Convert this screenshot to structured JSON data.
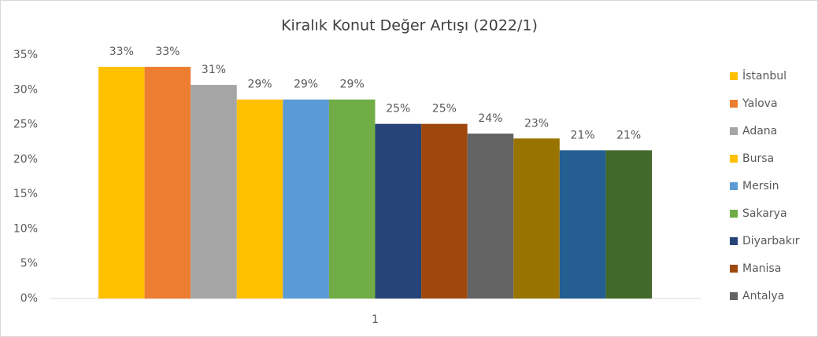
{
  "chart_data": {
    "type": "bar",
    "title": "Kiralık Konut Değer Artışı (2022/1)",
    "categories": [
      "1"
    ],
    "series": [
      {
        "name": "İstanbul",
        "color": "#ffc000",
        "values": [
          33.3
        ],
        "value_labels": [
          "33%"
        ]
      },
      {
        "name": "Yalova",
        "color": "#ed7d31",
        "values": [
          33.3
        ],
        "value_labels": [
          "33%"
        ]
      },
      {
        "name": "Adana",
        "color": "#a5a5a5",
        "values": [
          30.7
        ],
        "value_labels": [
          "31%"
        ]
      },
      {
        "name": "Bursa",
        "color": "#ffc000",
        "values": [
          28.6
        ],
        "value_labels": [
          "29%"
        ]
      },
      {
        "name": "Mersin",
        "color": "#5b9bd5",
        "values": [
          28.6
        ],
        "value_labels": [
          "29%"
        ]
      },
      {
        "name": "Sakarya",
        "color": "#70ad47",
        "values": [
          28.6
        ],
        "value_labels": [
          "29%"
        ]
      },
      {
        "name": "Diyarbakır",
        "color": "#264478",
        "values": [
          25.1
        ],
        "value_labels": [
          "25%"
        ]
      },
      {
        "name": "Manisa",
        "color": "#9e480e",
        "values": [
          25.1
        ],
        "value_labels": [
          "25%"
        ]
      },
      {
        "name": "Antalya",
        "color": "#636363",
        "values": [
          23.7
        ],
        "value_labels": [
          "24%"
        ]
      },
      {
        "color": "#997300",
        "values": [
          23.0
        ],
        "value_labels": [
          "23%"
        ]
      },
      {
        "color": "#255e91",
        "values": [
          21.3
        ],
        "value_labels": [
          "21%"
        ]
      },
      {
        "color": "#43682b",
        "values": [
          21.3
        ],
        "value_labels": [
          "21%"
        ]
      }
    ],
    "ylim": [
      0,
      35
    ],
    "yticks": [
      {
        "value": 0,
        "label": "0%"
      },
      {
        "value": 5,
        "label": "5%"
      },
      {
        "value": 10,
        "label": "10%"
      },
      {
        "value": 15,
        "label": "15%"
      },
      {
        "value": 20,
        "label": "20%"
      },
      {
        "value": 25,
        "label": "25%"
      },
      {
        "value": 30,
        "label": "30%"
      },
      {
        "value": 35,
        "label": "35%"
      }
    ],
    "grid": false,
    "legend": "right"
  }
}
